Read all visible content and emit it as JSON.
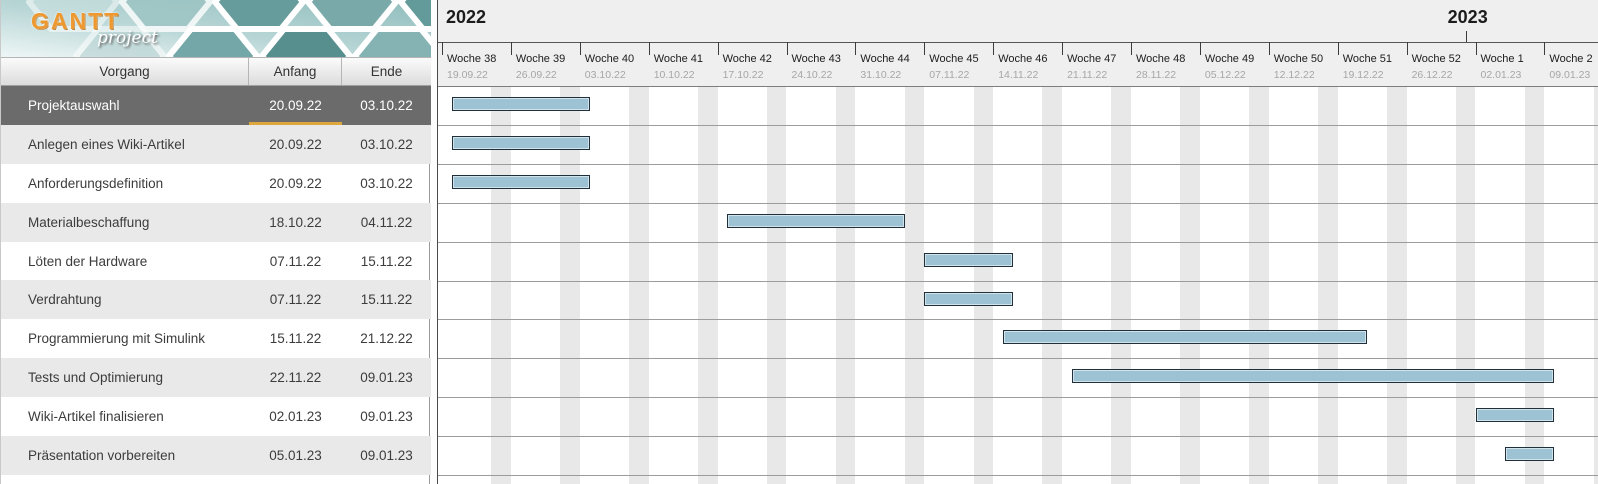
{
  "logo": {
    "title": "GANTT",
    "subtitle": "project"
  },
  "table": {
    "columns": [
      {
        "id": "task",
        "label": "Vorgang"
      },
      {
        "id": "start",
        "label": "Anfang"
      },
      {
        "id": "end",
        "label": "Ende"
      }
    ],
    "rows": [
      {
        "task": "Projektauswahl",
        "start": "20.09.22",
        "end": "03.10.22",
        "selected": true
      },
      {
        "task": "Anlegen eines Wiki-Artikel",
        "start": "20.09.22",
        "end": "03.10.22",
        "selected": false
      },
      {
        "task": "Anforderungsdefinition",
        "start": "20.09.22",
        "end": "03.10.22",
        "selected": false
      },
      {
        "task": "Materialbeschaffung",
        "start": "18.10.22",
        "end": "04.11.22",
        "selected": false
      },
      {
        "task": "Löten der Hardware",
        "start": "07.11.22",
        "end": "15.11.22",
        "selected": false
      },
      {
        "task": "Verdrahtung",
        "start": "07.11.22",
        "end": "15.11.22",
        "selected": false
      },
      {
        "task": "Programmierung mit Simulink",
        "start": "15.11.22",
        "end": "21.12.22",
        "selected": false
      },
      {
        "task": "Tests und Optimierung",
        "start": "22.11.22",
        "end": "09.01.23",
        "selected": false
      },
      {
        "task": "Wiki-Artikel finalisieren",
        "start": "02.01.23",
        "end": "09.01.23",
        "selected": false
      },
      {
        "task": "Präsentation vorbereiten",
        "start": "05.01.23",
        "end": "09.01.23",
        "selected": false
      }
    ]
  },
  "timeline": {
    "start_date": "19.09.22",
    "years": [
      {
        "label": "2022",
        "tick_date": "19.09.22",
        "has_tick": false
      },
      {
        "label": "2023",
        "tick_date": "01.01.23",
        "has_tick": true
      }
    ],
    "weeks": [
      {
        "label": "Woche 38",
        "date": "19.09.22"
      },
      {
        "label": "Woche 39",
        "date": "26.09.22"
      },
      {
        "label": "Woche 40",
        "date": "03.10.22"
      },
      {
        "label": "Woche 41",
        "date": "10.10.22"
      },
      {
        "label": "Woche 42",
        "date": "17.10.22"
      },
      {
        "label": "Woche 43",
        "date": "24.10.22"
      },
      {
        "label": "Woche 44",
        "date": "31.10.22"
      },
      {
        "label": "Woche 45",
        "date": "07.11.22"
      },
      {
        "label": "Woche 46",
        "date": "14.11.22"
      },
      {
        "label": "Woche 47",
        "date": "21.11.22"
      },
      {
        "label": "Woche 48",
        "date": "28.11.22"
      },
      {
        "label": "Woche 49",
        "date": "05.12.22"
      },
      {
        "label": "Woche 50",
        "date": "12.12.22"
      },
      {
        "label": "Woche 51",
        "date": "19.12.22"
      },
      {
        "label": "Woche 52",
        "date": "26.12.22"
      },
      {
        "label": "Woche 1",
        "date": "02.01.23"
      },
      {
        "label": "Woche 2",
        "date": "09.01.23"
      }
    ]
  },
  "colors": {
    "bar_fill": "#9cc2d4",
    "bar_border": "#20303a",
    "selection_bg": "#6b6b6b",
    "selection_underline": "#dda73e",
    "weekend_stripe": "#e8e8e8",
    "banner_teal": "#6ea3a3",
    "logo_orange": "#ee9830"
  }
}
